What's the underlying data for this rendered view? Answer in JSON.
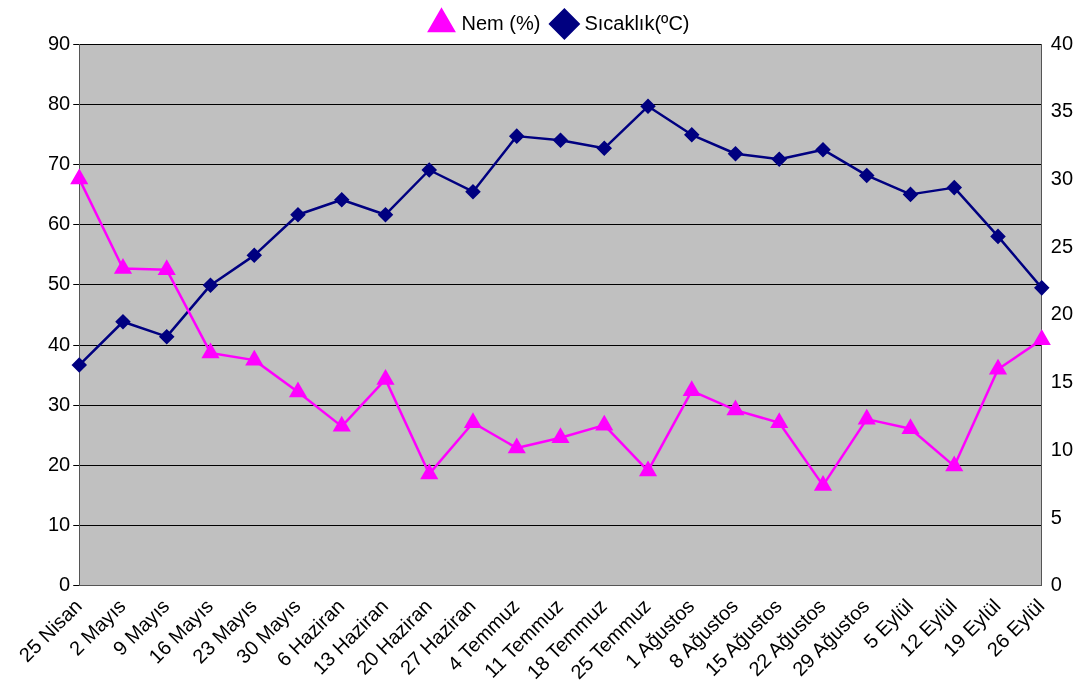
{
  "chart_data": {
    "type": "line",
    "categories": [
      "25 Nisan",
      "2 Mayıs",
      "9 Mayıs",
      "16 Mayıs",
      "23 Mayıs",
      "30 Mayıs",
      "6 Haziran",
      "13 Haziran",
      "20 Haziran",
      "27 Haziran",
      "4 Temmuz",
      "11 Temmuz",
      "18 Temmuz",
      "25 Temmuz",
      "1 Ağustos",
      "8 Ağustos",
      "15 Ağustos",
      "22 Ağustos",
      "29 Ağustos",
      "5 Eylül",
      "12 Eylül",
      "19 Eylül",
      "26 Eylül"
    ],
    "series": [
      {
        "name": "Nem (%)",
        "color": "#ff00ff",
        "marker": "triangle",
        "values": [
          67.6,
          52.7,
          52.5,
          38.7,
          37.5,
          32.2,
          26.5,
          34.3,
          18.6,
          27.1,
          22.9,
          24.6,
          26.7,
          19.1,
          32.4,
          29.2,
          27.1,
          16.7,
          27.7,
          26.1,
          19.9,
          36.0,
          40.9
        ]
      },
      {
        "name": "Sıcaklık(ºC)",
        "color": "#000080",
        "marker": "diamond",
        "axis": "y2",
        "values": [
          16.3,
          19.5,
          18.4,
          22.2,
          24.4,
          27.4,
          28.5,
          27.4,
          30.7,
          29.1,
          33.2,
          32.9,
          32.3,
          35.4,
          33.3,
          31.9,
          31.5,
          32.2,
          30.3,
          28.9,
          29.4,
          25.8,
          22.0
        ]
      }
    ],
    "ylim": [
      0,
      90
    ],
    "yticks": [
      0,
      10,
      20,
      30,
      40,
      50,
      60,
      70,
      80,
      90
    ],
    "y2lim": [
      0,
      40
    ],
    "y2ticks": [
      0,
      5,
      10,
      15,
      20,
      25,
      30,
      35,
      40
    ],
    "grid": "y",
    "legend": "top",
    "line_style": "solid"
  }
}
